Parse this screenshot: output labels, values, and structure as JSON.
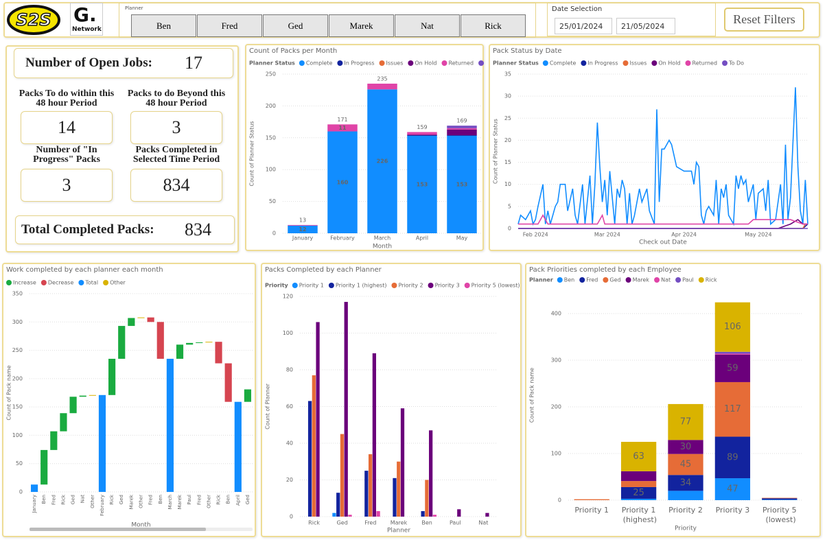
{
  "header": {
    "logo": "S2S",
    "logo2": "G.",
    "logo2_sub": "Network",
    "planner_label": "Planner",
    "planners": [
      "Ben",
      "Fred",
      "Ged",
      "Marek",
      "Nat",
      "Rick"
    ],
    "date_label": "Date Selection",
    "date_from": "25/01/2024",
    "date_to": "21/05/2024",
    "reset": "Reset Filters"
  },
  "kpis": {
    "open_jobs": {
      "label": "Number of Open Jobs:",
      "value": 17
    },
    "cards": [
      {
        "label": "Packs To do within this 48 hour Period",
        "value": 14
      },
      {
        "label": "Packs to do Beyond this 48 hour Period",
        "value": 3
      },
      {
        "label": "Number of \"In Progress\" Packs",
        "value": 3
      },
      {
        "label": "Packs Completed in Selected Time Period",
        "value": 834
      }
    ],
    "total": {
      "label": "Total Completed Packs:",
      "value": 834
    }
  },
  "chart_data": [
    {
      "type": "bar",
      "stacked": true,
      "title": "Count of Packs per Month",
      "legend_title": "Planner Status",
      "categories": [
        "January",
        "February",
        "March",
        "April",
        "May"
      ],
      "series": [
        {
          "name": "Complete",
          "color": "#118DFF",
          "values": [
            12,
            160,
            226,
            153,
            153
          ]
        },
        {
          "name": "In Progress",
          "color": "#12239E",
          "values": [
            0,
            0,
            0,
            1,
            1
          ]
        },
        {
          "name": "Issues",
          "color": "#E66C37",
          "values": [
            0,
            0,
            0,
            0,
            0
          ]
        },
        {
          "name": "On Hold",
          "color": "#6B007B",
          "values": [
            0,
            0,
            0,
            1,
            9
          ]
        },
        {
          "name": "Returned",
          "color": "#E044A7",
          "values": [
            1,
            11,
            9,
            4,
            2
          ]
        },
        {
          "name": "To Do",
          "color": "#744EC2",
          "values": [
            0,
            0,
            0,
            0,
            4
          ]
        }
      ],
      "totals": [
        13,
        171,
        235,
        159,
        169
      ],
      "xlabel": "Month",
      "ylabel": "Count of Planner Status",
      "ylim": [
        0,
        250
      ],
      "yticks": [
        0,
        50,
        100,
        150,
        200,
        250
      ],
      "grid": true
    },
    {
      "type": "line",
      "title": "Pack Status by Date",
      "legend_title": "Planner Status",
      "xlim": [
        25,
        142
      ],
      "xticks": [
        {
          "value": 32,
          "label": "Feb 2024"
        },
        {
          "value": 61,
          "label": "Mar 2024"
        },
        {
          "value": 92,
          "label": "Apr 2024"
        },
        {
          "value": 122,
          "label": "May 2024"
        }
      ],
      "series": [
        {
          "name": "Complete",
          "color": "#118DFF",
          "x": [
            25,
            26,
            28,
            30,
            31,
            32,
            33,
            35,
            36,
            37,
            38,
            40,
            41,
            42,
            44,
            45,
            47,
            48,
            49,
            51,
            52,
            54,
            55,
            56,
            57,
            58,
            59,
            60,
            61,
            62,
            63,
            64,
            65,
            66,
            67,
            68,
            69,
            70,
            71,
            72,
            74,
            75,
            77,
            78,
            80,
            81,
            82,
            83,
            84,
            85,
            86,
            87,
            89,
            92,
            95,
            96,
            97,
            98,
            99,
            100,
            101,
            102,
            104,
            105,
            106,
            107,
            108,
            109,
            110,
            112,
            113,
            114,
            115,
            116,
            117,
            118,
            120,
            121,
            122,
            124,
            125,
            126,
            127,
            129,
            131,
            132,
            133,
            134,
            135,
            137,
            138,
            139,
            140,
            141,
            142
          ],
          "values": [
            1,
            3,
            2,
            4,
            1,
            2,
            5,
            10,
            1,
            4,
            1,
            5,
            6,
            10,
            10,
            4,
            9,
            3,
            1,
            10,
            1,
            12,
            1,
            10,
            24,
            14,
            6,
            11,
            3,
            13,
            7,
            1,
            9,
            7,
            11,
            9,
            1,
            8,
            1,
            3,
            9,
            6,
            9,
            4,
            1,
            27,
            6,
            18,
            18,
            19,
            20,
            19,
            14,
            13,
            13,
            10,
            15,
            14,
            3,
            1,
            4,
            5,
            3,
            11,
            1,
            9,
            7,
            10,
            3,
            1,
            12,
            9,
            12,
            10,
            11,
            6,
            10,
            2,
            8,
            9,
            4,
            11,
            1,
            2,
            10,
            1,
            19,
            2,
            7,
            32,
            14,
            4,
            1,
            11,
            1
          ]
        },
        {
          "name": "In Progress",
          "color": "#12239E",
          "x": [
            25,
            80,
            120,
            140,
            142
          ],
          "values": [
            0,
            0,
            0,
            0,
            1
          ]
        },
        {
          "name": "Issues",
          "color": "#E66C37",
          "x": [
            25,
            140,
            141
          ],
          "values": [
            0,
            0,
            1
          ]
        },
        {
          "name": "On Hold",
          "color": "#6B007B",
          "x": [
            25,
            60,
            100,
            130,
            135,
            138,
            140,
            142
          ],
          "values": [
            0,
            0,
            0,
            0,
            1,
            2,
            1,
            1
          ]
        },
        {
          "name": "Returned",
          "color": "#E044A7",
          "x": [
            25,
            30,
            33,
            35,
            37,
            45,
            55,
            57,
            59,
            60,
            70,
            80,
            90,
            100,
            110,
            118,
            120,
            130,
            135,
            140,
            142
          ],
          "values": [
            1,
            1,
            1,
            3,
            1,
            1,
            1,
            1,
            3,
            1,
            1,
            1,
            1,
            1,
            1,
            1,
            2,
            2,
            2,
            1,
            1
          ]
        },
        {
          "name": "To Do",
          "color": "#744EC2",
          "x": [
            25,
            142
          ],
          "values": [
            0,
            0
          ]
        }
      ],
      "xlabel": "Check out Date",
      "ylabel": "Count of Planner Status",
      "ylim": [
        0,
        35
      ],
      "yticks": [
        0,
        5,
        10,
        15,
        20,
        25,
        30,
        35
      ],
      "grid": true
    },
    {
      "type": "waterfall",
      "title": "Work completed by each planner each month",
      "legend": [
        {
          "name": "Increase",
          "color": "#1AAB40"
        },
        {
          "name": "Decrease",
          "color": "#D64550"
        },
        {
          "name": "Total",
          "color": "#118DFF"
        },
        {
          "name": "Other",
          "color": "#D9B300"
        }
      ],
      "categories": [
        "January",
        "Ben",
        "Fred",
        "Rick",
        "Ged",
        "Nat",
        "Other",
        "February",
        "Rick",
        "Ged",
        "Marek",
        "Other",
        "Fred",
        "Ben",
        "March",
        "Marek",
        "Paul",
        "Fred",
        "Other",
        "Rick",
        "Ben",
        "April",
        "Ged"
      ],
      "kinds": [
        "Total",
        "Increase",
        "Increase",
        "Increase",
        "Increase",
        "Increase",
        "Other",
        "Total",
        "Increase",
        "Increase",
        "Increase",
        "Other",
        "Decrease",
        "Decrease",
        "Total",
        "Increase",
        "Increase",
        "Increase",
        "Other",
        "Decrease",
        "Decrease",
        "Total",
        "Increase"
      ],
      "values": [
        13,
        61,
        33,
        32,
        29,
        2,
        1,
        171,
        64,
        58,
        14,
        1,
        -8,
        -65,
        235,
        25,
        3,
        1,
        1,
        -38,
        -68,
        159,
        22
      ],
      "xlabel": "Month",
      "ylabel": "Count of Pack name",
      "ylim": [
        0,
        350
      ],
      "yticks": [
        0,
        50,
        100,
        150,
        200,
        250,
        300,
        350
      ],
      "grid": true
    },
    {
      "type": "bar",
      "stacked": false,
      "title": "Packs Completed by each Planner",
      "legend_title": "Priority",
      "categories": [
        "Rick",
        "Ged",
        "Fred",
        "Marek",
        "Ben",
        "Paul",
        "Nat"
      ],
      "series": [
        {
          "name": "Priority 1",
          "color": "#118DFF",
          "values": [
            0,
            2,
            0,
            0,
            0,
            0,
            0
          ]
        },
        {
          "name": "Priority 1 (highest)",
          "color": "#12239E",
          "values": [
            63,
            13,
            25,
            21,
            3,
            0,
            0
          ]
        },
        {
          "name": "Priority 2",
          "color": "#E66C37",
          "values": [
            77,
            45,
            34,
            30,
            20,
            0,
            0
          ]
        },
        {
          "name": "Priority 3",
          "color": "#6B007B",
          "values": [
            106,
            117,
            89,
            59,
            47,
            4,
            2
          ]
        },
        {
          "name": "Priority 5 (lowest)",
          "color": "#E044A7",
          "values": [
            0,
            1,
            3,
            0,
            1,
            0,
            0
          ]
        }
      ],
      "xlabel": "Planner",
      "ylabel": "Count of Planner",
      "ylim": [
        0,
        120
      ],
      "yticks": [
        0,
        20,
        40,
        60,
        80,
        100,
        120
      ],
      "grid": true
    },
    {
      "type": "bar",
      "stacked": true,
      "title": "Pack Priorities completed by each Employee",
      "legend_title": "Planner",
      "categories": [
        "Priority 1",
        "Priority 1 (highest)",
        "Priority 2",
        "Priority 3",
        "Priority 5 (lowest)"
      ],
      "series": [
        {
          "name": "Ben",
          "color": "#118DFF",
          "values": [
            0,
            3,
            20,
            47,
            1
          ]
        },
        {
          "name": "Fred",
          "color": "#12239E",
          "values": [
            0,
            25,
            34,
            89,
            3
          ]
        },
        {
          "name": "Ged",
          "color": "#E66C37",
          "values": [
            2,
            13,
            45,
            117,
            1
          ]
        },
        {
          "name": "Marek",
          "color": "#6B007B",
          "values": [
            0,
            21,
            30,
            59,
            0
          ]
        },
        {
          "name": "Nat",
          "color": "#E044A7",
          "values": [
            0,
            0,
            0,
            2,
            0
          ]
        },
        {
          "name": "Paul",
          "color": "#744EC2",
          "values": [
            0,
            0,
            0,
            4,
            0
          ]
        },
        {
          "name": "Rick",
          "color": "#D9B300",
          "values": [
            0,
            63,
            77,
            106,
            0
          ]
        }
      ],
      "xlabel": "Priority",
      "ylabel": "Count of Pack name",
      "ylim": [
        0,
        450
      ],
      "yticks": [
        0,
        100,
        200,
        300,
        400
      ],
      "grid": true
    }
  ]
}
